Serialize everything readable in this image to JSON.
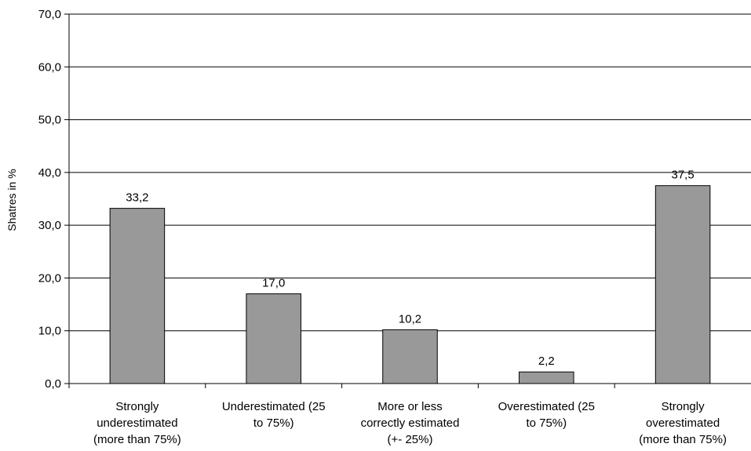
{
  "chart_data": {
    "type": "bar",
    "ylabel": "Shatres in %",
    "ylim": [
      0,
      70
    ],
    "ytick_step": 10,
    "ytick_labels": [
      "0,0",
      "10,0",
      "20,0",
      "30,0",
      "40,0",
      "50,0",
      "60,0",
      "70,0"
    ],
    "grid": true,
    "legend": "none",
    "categories": [
      [
        "Strongly",
        "underestimated",
        "(more than 75%)"
      ],
      [
        "Underestimated (25",
        "to 75%)"
      ],
      [
        "More or less",
        "correctly estimated",
        "(+- 25%)"
      ],
      [
        "Overestimated (25",
        "to 75%)"
      ],
      [
        "Strongly",
        "overestimated",
        "(more than 75%)"
      ]
    ],
    "values": [
      33.2,
      17.0,
      10.2,
      2.2,
      37.5
    ],
    "data_labels": [
      "33,2",
      "17,0",
      "10,2",
      "2,2",
      "37,5"
    ],
    "colors": {
      "bar_fill": "#999999",
      "bar_stroke": "#000000",
      "grid": "#000000",
      "axis": "#000000"
    }
  }
}
